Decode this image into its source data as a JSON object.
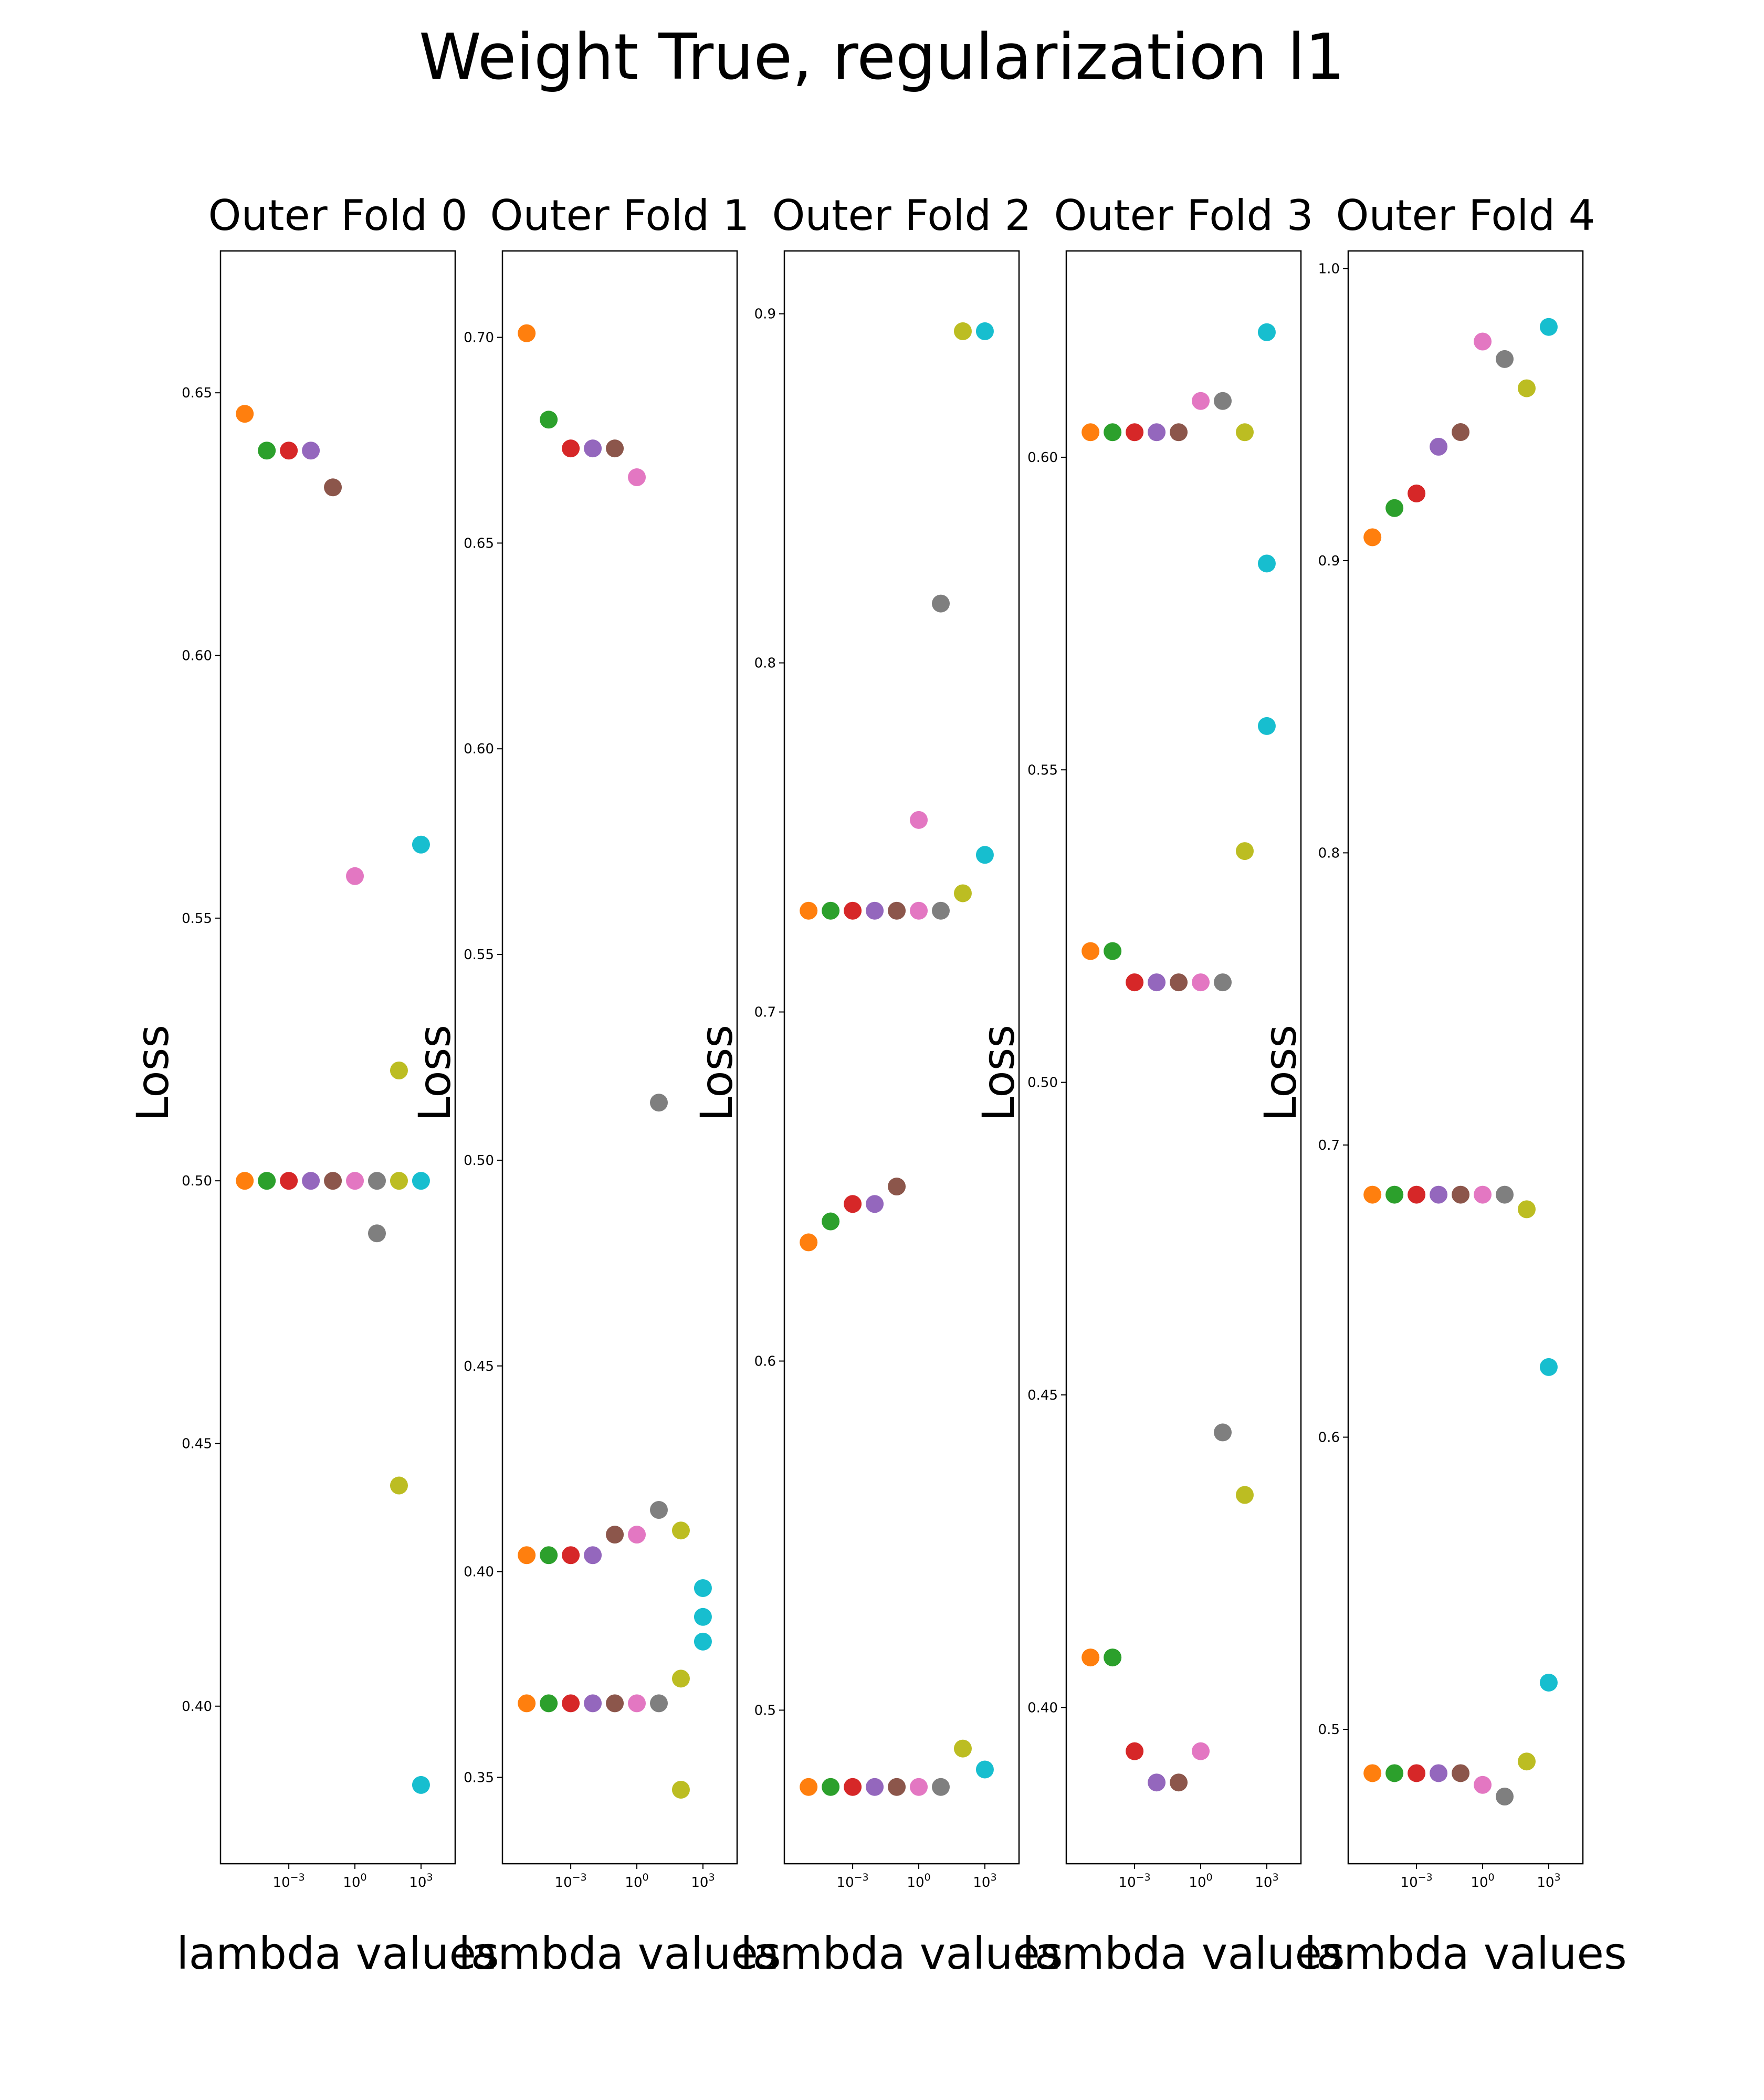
{
  "title": "Weight True, regularization l1",
  "colors": [
    "#ff7f0e",
    "#2ca02c",
    "#d62728",
    "#9467bd",
    "#8c564b",
    "#e377c2",
    "#7f7f7f",
    "#bcbd22",
    "#17becf"
  ],
  "chart_data": [
    {
      "type": "scatter",
      "title": "Outer Fold 0",
      "xlabel": "lambda values",
      "ylabel": "Loss",
      "xscale": "log",
      "x": [
        1e-05,
        0.0001,
        0.001,
        0.01,
        0.1,
        1,
        10,
        100,
        1000,
        10000
      ],
      "xticks": [
        {
          "value": 0.001,
          "label": "10",
          "exp": "−3"
        },
        {
          "value": 1,
          "label": "10",
          "exp": "0"
        },
        {
          "value": 1000,
          "label": "10",
          "exp": "3"
        }
      ],
      "yticks": [
        0.4,
        0.45,
        0.5,
        0.55,
        0.6,
        0.65
      ],
      "ylim": [
        0.37,
        0.677
      ],
      "series": [
        {
          "values": [
            0.646,
            0.639,
            0.639,
            0.639,
            0.632,
            0.558,
            null,
            null,
            0.564,
            null
          ]
        },
        {
          "values": [
            0.5,
            0.5,
            0.5,
            0.5,
            0.5,
            0.5,
            0.5,
            0.5,
            0.5,
            null
          ]
        },
        {
          "values": [
            null,
            null,
            null,
            null,
            null,
            null,
            0.49,
            0.442,
            0.385,
            null
          ]
        },
        {
          "values": [
            null,
            null,
            null,
            null,
            null,
            null,
            null,
            0.521,
            null,
            null
          ]
        }
      ]
    },
    {
      "type": "scatter",
      "title": "Outer Fold 1",
      "xlabel": "lambda values",
      "ylabel": "Loss",
      "xscale": "log",
      "x": [
        1e-05,
        0.0001,
        0.001,
        0.01,
        0.1,
        1,
        10,
        100,
        1000,
        10000
      ],
      "xticks": [
        {
          "value": 0.001,
          "label": "10",
          "exp": "−3"
        },
        {
          "value": 1,
          "label": "10",
          "exp": "0"
        },
        {
          "value": 1000,
          "label": "10",
          "exp": "3"
        }
      ],
      "yticks": [
        0.35,
        0.4,
        0.45,
        0.5,
        0.55,
        0.6,
        0.65,
        0.7
      ],
      "ylim": [
        0.329,
        0.721
      ],
      "series": [
        {
          "values": [
            0.701,
            0.68,
            0.673,
            0.673,
            0.673,
            0.666,
            0.514,
            0.41,
            0.396,
            null
          ]
        },
        {
          "values": [
            0.404,
            0.404,
            0.404,
            0.404,
            0.409,
            0.409,
            0.415,
            0.374,
            0.389,
            null
          ]
        },
        {
          "values": [
            0.368,
            0.368,
            0.368,
            0.368,
            0.368,
            0.368,
            0.368,
            0.347,
            0.383,
            null
          ]
        }
      ]
    },
    {
      "type": "scatter",
      "title": "Outer Fold 2",
      "xlabel": "lambda values",
      "ylabel": "Loss",
      "xscale": "log",
      "x": [
        1e-05,
        0.0001,
        0.001,
        0.01,
        0.1,
        1,
        10,
        100,
        1000,
        10000
      ],
      "xticks": [
        {
          "value": 0.001,
          "label": "10",
          "exp": "−3"
        },
        {
          "value": 1,
          "label": "10",
          "exp": "0"
        },
        {
          "value": 1000,
          "label": "10",
          "exp": "3"
        }
      ],
      "yticks": [
        0.5,
        0.6,
        0.7,
        0.8,
        0.9
      ],
      "ylim": [
        0.456,
        0.918
      ],
      "series": [
        {
          "values": [
            0.729,
            0.729,
            0.729,
            0.729,
            0.729,
            0.755,
            0.817,
            0.895,
            0.895,
            null
          ]
        },
        {
          "values": [
            0.634,
            0.64,
            0.645,
            0.645,
            0.65,
            0.729,
            0.729,
            0.734,
            0.745,
            null
          ]
        },
        {
          "values": [
            0.478,
            0.478,
            0.478,
            0.478,
            0.478,
            0.478,
            0.478,
            0.489,
            0.483,
            null
          ]
        }
      ]
    },
    {
      "type": "scatter",
      "title": "Outer Fold 3",
      "xlabel": "lambda values",
      "ylabel": "Loss",
      "xscale": "log",
      "x": [
        1e-05,
        0.0001,
        0.001,
        0.01,
        0.1,
        1,
        10,
        100,
        1000,
        10000
      ],
      "xticks": [
        {
          "value": 0.001,
          "label": "10",
          "exp": "−3"
        },
        {
          "value": 1,
          "label": "10",
          "exp": "0"
        },
        {
          "value": 1000,
          "label": "10",
          "exp": "3"
        }
      ],
      "yticks": [
        0.4,
        0.45,
        0.5,
        0.55,
        0.6
      ],
      "ylim": [
        0.375,
        0.633
      ],
      "series": [
        {
          "values": [
            0.604,
            0.604,
            0.604,
            0.604,
            0.604,
            0.609,
            0.609,
            0.604,
            0.62,
            null
          ]
        },
        {
          "values": [
            0.521,
            0.521,
            0.516,
            0.516,
            0.516,
            0.516,
            0.516,
            0.537,
            0.583,
            null
          ]
        },
        {
          "values": [
            0.408,
            0.408,
            0.393,
            0.388,
            0.388,
            0.393,
            0.444,
            0.434,
            0.557,
            null
          ]
        }
      ]
    },
    {
      "type": "scatter",
      "title": "Outer Fold 4",
      "xlabel": "lambda values",
      "ylabel": "Loss",
      "xscale": "log",
      "x": [
        1e-05,
        0.0001,
        0.001,
        0.01,
        0.1,
        1,
        10,
        100,
        1000,
        10000
      ],
      "xticks": [
        {
          "value": 0.001,
          "label": "10",
          "exp": "−3"
        },
        {
          "value": 1,
          "label": "10",
          "exp": "0"
        },
        {
          "value": 1000,
          "label": "10",
          "exp": "3"
        }
      ],
      "yticks": [
        0.5,
        0.6,
        0.7,
        0.8,
        0.9,
        1.0
      ],
      "ylim": [
        0.454,
        1.006
      ],
      "series": [
        {
          "values": [
            0.908,
            0.918,
            0.923,
            0.939,
            0.944,
            0.975,
            0.969,
            0.959,
            0.98,
            null
          ]
        },
        {
          "values": [
            0.683,
            0.683,
            0.683,
            0.683,
            0.683,
            0.683,
            0.683,
            0.678,
            0.624,
            null
          ]
        },
        {
          "values": [
            0.485,
            0.485,
            0.485,
            0.485,
            0.485,
            0.481,
            0.477,
            0.489,
            0.516,
            null
          ]
        }
      ]
    }
  ]
}
